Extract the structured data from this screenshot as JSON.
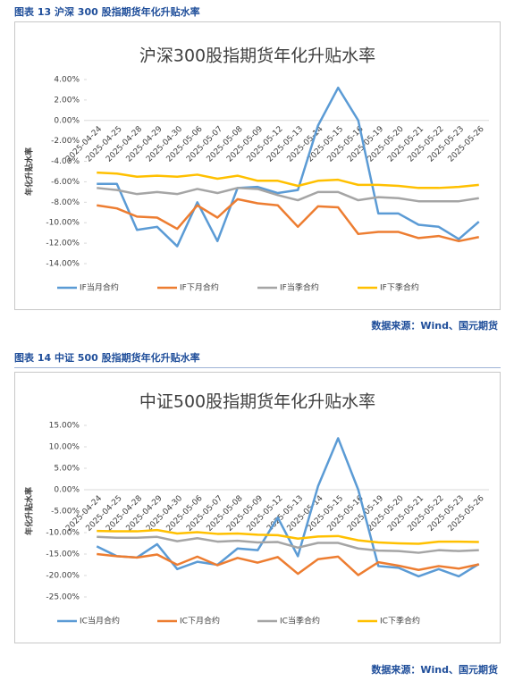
{
  "figures": [
    {
      "caption": "图表 13 沪深 300 股指期货年化升贴水率",
      "source": "数据来源：Wind、国元期货",
      "chart_data": {
        "type": "line",
        "title": "沪深300股指期货年化升贴水率",
        "y_label": "年化升贴水率",
        "categories": [
          "2025-04-24",
          "2025-04-25",
          "2025-04-28",
          "2025-04-29",
          "2025-04-30",
          "2025-05-06",
          "2025-05-07",
          "2025-05-08",
          "2025-05-09",
          "2025-05-12",
          "2025-05-13",
          "2025-05-14",
          "2025-05-15",
          "2025-05-16",
          "2025-05-19",
          "2025-05-20",
          "2025-05-21",
          "2025-05-22",
          "2025-05-23",
          "2025-05-26"
        ],
        "ylim": [
          -14,
          4
        ],
        "yticks": [
          {
            "value": 4,
            "label": "4.00%"
          },
          {
            "value": 2,
            "label": "2.00%"
          },
          {
            "value": 0,
            "label": "0.00%"
          },
          {
            "value": -2,
            "label": "-2.00%"
          },
          {
            "value": -4,
            "label": "-4.00%"
          },
          {
            "value": -6,
            "label": "-6.00%"
          },
          {
            "value": -8,
            "label": "-8.00%"
          },
          {
            "value": -10,
            "label": "-10.00%"
          },
          {
            "value": -12,
            "label": "-12.00%"
          },
          {
            "value": -14,
            "label": "-14.00%"
          }
        ],
        "legend": "bottom",
        "series": [
          {
            "name": "IF当月合约",
            "color": "#5b9bd5",
            "values": [
              -6.2,
              -6.2,
              -10.7,
              -10.4,
              -12.3,
              -8.0,
              -11.8,
              -6.6,
              -6.5,
              -7.1,
              -6.8,
              -0.5,
              3.2,
              0.0,
              -9.1,
              -9.1,
              -10.2,
              -10.4,
              -11.6,
              -9.9
            ]
          },
          {
            "name": "IF下月合约",
            "color": "#ed7d31",
            "values": [
              -8.3,
              -8.6,
              -9.4,
              -9.5,
              -10.6,
              -8.3,
              -9.5,
              -7.7,
              -8.1,
              -8.3,
              -10.4,
              -8.4,
              -8.5,
              -11.1,
              -10.9,
              -10.9,
              -11.5,
              -11.3,
              -11.8,
              -11.4
            ]
          },
          {
            "name": "IF当季合约",
            "color": "#a5a5a5",
            "values": [
              -6.6,
              -6.8,
              -7.2,
              -7.0,
              -7.2,
              -6.7,
              -7.1,
              -6.6,
              -6.7,
              -7.3,
              -7.8,
              -7.0,
              -7.0,
              -7.8,
              -7.5,
              -7.6,
              -7.9,
              -7.9,
              -7.9,
              -7.6
            ]
          },
          {
            "name": "IF下季合约",
            "color": "#ffc000",
            "values": [
              -5.1,
              -5.2,
              -5.5,
              -5.4,
              -5.5,
              -5.3,
              -5.7,
              -5.4,
              -5.9,
              -5.9,
              -6.4,
              -5.9,
              -5.8,
              -6.3,
              -6.3,
              -6.4,
              -6.6,
              -6.6,
              -6.5,
              -6.3
            ]
          }
        ]
      }
    },
    {
      "caption": "图表 14 中证 500 股指期货年化升贴水率",
      "source": "数据来源：Wind、国元期货",
      "chart_data": {
        "type": "line",
        "title": "中证500股指期货年化升贴水率",
        "y_label": "年化升贴水率",
        "categories": [
          "2025-04-24",
          "2025-04-25",
          "2025-04-28",
          "2025-04-29",
          "2025-04-30",
          "2025-05-06",
          "2025-05-07",
          "2025-05-08",
          "2025-05-09",
          "2025-05-12",
          "2025-05-13",
          "2025-05-14",
          "2025-05-15",
          "2025-05-16",
          "2025-05-19",
          "2025-05-20",
          "2025-05-21",
          "2025-05-22",
          "2025-05-23",
          "2025-05-26"
        ],
        "ylim": [
          -25,
          15
        ],
        "yticks": [
          {
            "value": 15,
            "label": "15.00%"
          },
          {
            "value": 10,
            "label": "10.00%"
          },
          {
            "value": 5,
            "label": "5.00%"
          },
          {
            "value": 0,
            "label": "0.00%"
          },
          {
            "value": -5,
            "label": "-5.00%"
          },
          {
            "value": -10,
            "label": "-10.00%"
          },
          {
            "value": -15,
            "label": "-15.00%"
          },
          {
            "value": -20,
            "label": "-20.00%"
          },
          {
            "value": -25,
            "label": "-25.00%"
          }
        ],
        "legend": "bottom",
        "series": [
          {
            "name": "IC当月合约",
            "color": "#5b9bd5",
            "values": [
              -13.2,
              -15.5,
              -15.8,
              -12.7,
              -18.5,
              -16.8,
              -17.5,
              -13.7,
              -14.1,
              -6.5,
              -15.5,
              0.8,
              12.0,
              0.0,
              -17.8,
              -18.2,
              -20.2,
              -18.5,
              -20.2,
              -17.3
            ]
          },
          {
            "name": "IC下月合约",
            "color": "#ed7d31",
            "values": [
              -15.0,
              -15.5,
              -15.8,
              -15.1,
              -17.5,
              -15.6,
              -17.6,
              -15.9,
              -17.0,
              -15.7,
              -19.6,
              -16.2,
              -15.6,
              -19.9,
              -16.9,
              -17.7,
              -18.7,
              -17.8,
              -18.4,
              -17.4
            ]
          },
          {
            "name": "IC当季合约",
            "color": "#a5a5a5",
            "values": [
              -11.0,
              -11.2,
              -11.2,
              -11.0,
              -12.0,
              -11.3,
              -12.1,
              -11.9,
              -12.3,
              -12.2,
              -13.5,
              -12.4,
              -12.4,
              -13.7,
              -14.2,
              -14.3,
              -14.7,
              -14.1,
              -14.3,
              -14.1
            ]
          },
          {
            "name": "IC下季合约",
            "color": "#ffc000",
            "values": [
              -9.6,
              -9.7,
              -9.7,
              -9.4,
              -10.2,
              -9.9,
              -10.3,
              -10.2,
              -10.5,
              -10.6,
              -11.4,
              -10.9,
              -10.8,
              -11.8,
              -12.3,
              -12.5,
              -12.6,
              -12.1,
              -12.1,
              -12.2
            ]
          }
        ]
      }
    }
  ]
}
